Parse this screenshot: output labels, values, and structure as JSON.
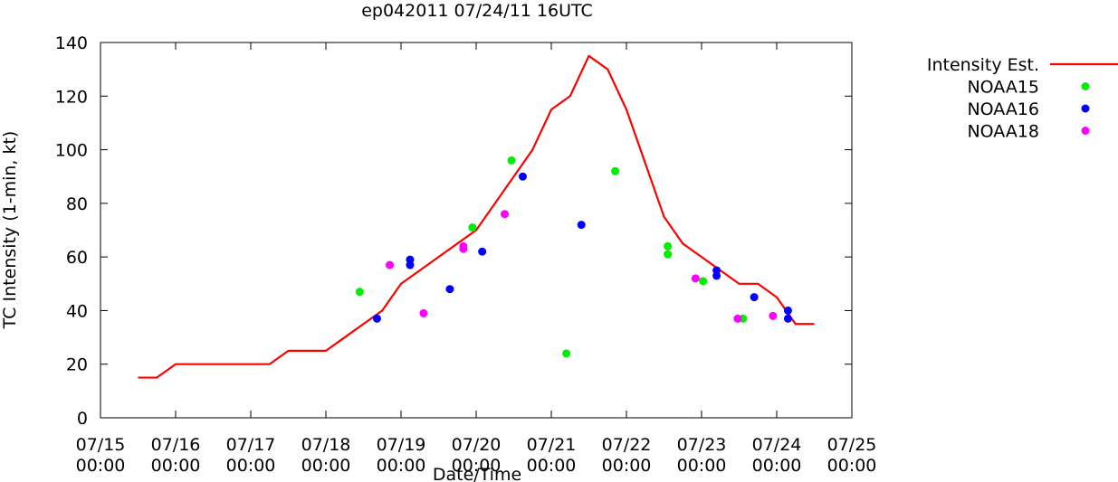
{
  "chart_data": {
    "type": "line",
    "title": "ep042011 07/24/11 16UTC",
    "xlabel": "Date/Time",
    "ylabel": "TC Intensity (1-min, kt)",
    "xlim_days": [
      15,
      25
    ],
    "ylim": [
      0,
      140
    ],
    "grid": false,
    "legend_position": "right, outside plot",
    "x_ticks": [
      {
        "day": 15,
        "line1": "07/15",
        "line2": "00:00"
      },
      {
        "day": 16,
        "line1": "07/16",
        "line2": "00:00"
      },
      {
        "day": 17,
        "line1": "07/17",
        "line2": "00:00"
      },
      {
        "day": 18,
        "line1": "07/18",
        "line2": "00:00"
      },
      {
        "day": 19,
        "line1": "07/19",
        "line2": "00:00"
      },
      {
        "day": 20,
        "line1": "07/20",
        "line2": "00:00"
      },
      {
        "day": 21,
        "line1": "07/21",
        "line2": "00:00"
      },
      {
        "day": 22,
        "line1": "07/22",
        "line2": "00:00"
      },
      {
        "day": 23,
        "line1": "07/23",
        "line2": "00:00"
      },
      {
        "day": 24,
        "line1": "07/24",
        "line2": "00:00"
      },
      {
        "day": 25,
        "line1": "07/25",
        "line2": "00:00"
      }
    ],
    "y_ticks": [
      0,
      20,
      40,
      60,
      80,
      100,
      120,
      140
    ],
    "series": [
      {
        "name": "Intensity Est.",
        "kind": "line",
        "color": "#ff0000",
        "points": [
          [
            15.5,
            15
          ],
          [
            15.75,
            15
          ],
          [
            16.0,
            20
          ],
          [
            16.25,
            20
          ],
          [
            16.5,
            20
          ],
          [
            16.75,
            20
          ],
          [
            17.0,
            20
          ],
          [
            17.25,
            20
          ],
          [
            17.5,
            25
          ],
          [
            17.75,
            25
          ],
          [
            18.0,
            25
          ],
          [
            18.25,
            30
          ],
          [
            18.5,
            35
          ],
          [
            18.75,
            40
          ],
          [
            19.0,
            50
          ],
          [
            19.25,
            55
          ],
          [
            19.5,
            60
          ],
          [
            19.75,
            65
          ],
          [
            20.0,
            70
          ],
          [
            20.25,
            80
          ],
          [
            20.5,
            90
          ],
          [
            20.75,
            100
          ],
          [
            21.0,
            115
          ],
          [
            21.25,
            120
          ],
          [
            21.5,
            135
          ],
          [
            21.75,
            130
          ],
          [
            22.0,
            115
          ],
          [
            22.25,
            95
          ],
          [
            22.5,
            75
          ],
          [
            22.75,
            65
          ],
          [
            23.0,
            60
          ],
          [
            23.25,
            55
          ],
          [
            23.5,
            50
          ],
          [
            23.75,
            50
          ],
          [
            24.0,
            45
          ],
          [
            24.25,
            35
          ],
          [
            24.5,
            35
          ]
        ]
      },
      {
        "name": "NOAA15",
        "kind": "points",
        "color": "#00ee00",
        "points": [
          [
            18.45,
            47
          ],
          [
            19.95,
            71
          ],
          [
            20.47,
            96
          ],
          [
            21.2,
            24
          ],
          [
            21.85,
            92
          ],
          [
            22.55,
            64
          ],
          [
            22.55,
            61
          ],
          [
            23.02,
            51
          ],
          [
            23.55,
            37
          ]
        ]
      },
      {
        "name": "NOAA16",
        "kind": "points",
        "color": "#0000ff",
        "points": [
          [
            18.68,
            37
          ],
          [
            19.12,
            59
          ],
          [
            19.12,
            57
          ],
          [
            19.65,
            48
          ],
          [
            20.08,
            62
          ],
          [
            20.62,
            90
          ],
          [
            21.4,
            72
          ],
          [
            23.2,
            55
          ],
          [
            23.2,
            53
          ],
          [
            23.7,
            45
          ],
          [
            24.15,
            40
          ],
          [
            24.15,
            37
          ]
        ]
      },
      {
        "name": "NOAA18",
        "kind": "points",
        "color": "#ff00ff",
        "points": [
          [
            18.85,
            57
          ],
          [
            19.3,
            39
          ],
          [
            19.83,
            64
          ],
          [
            19.83,
            63
          ],
          [
            20.38,
            76
          ],
          [
            22.92,
            52
          ],
          [
            23.48,
            37
          ],
          [
            23.95,
            38
          ]
        ]
      }
    ]
  }
}
